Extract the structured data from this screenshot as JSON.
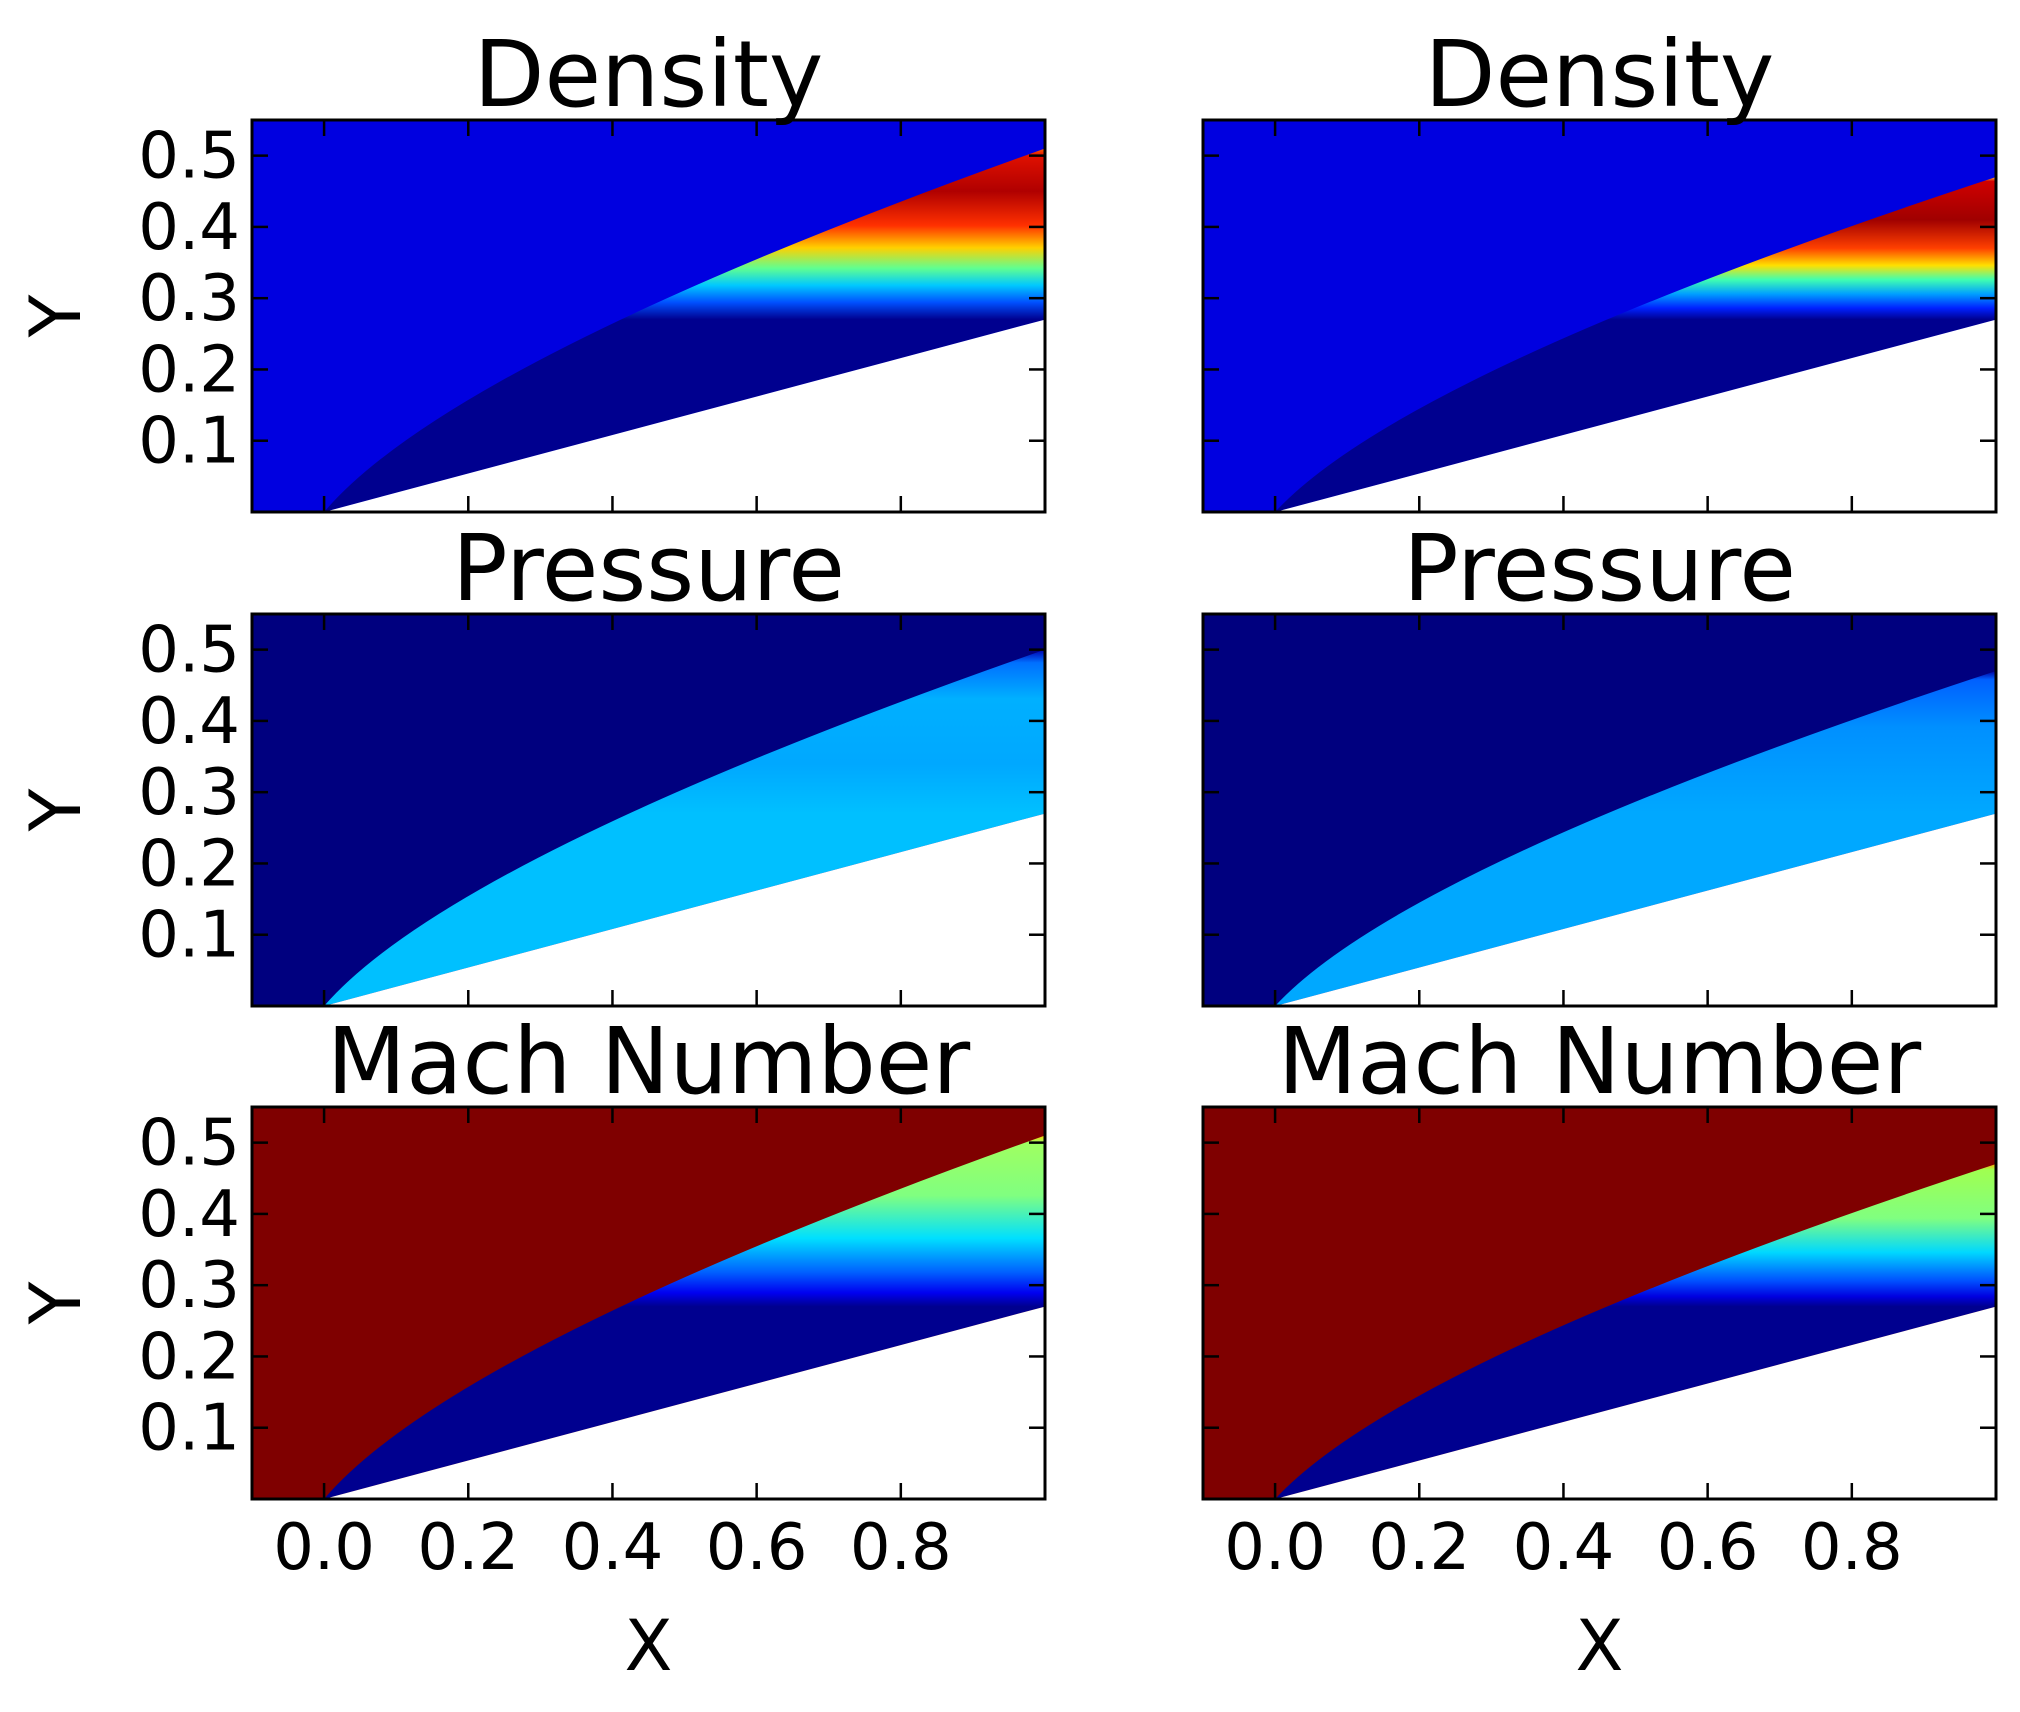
{
  "chart_data": [
    {
      "type": "heatmap",
      "title": "Density",
      "xlabel": "",
      "ylabel": "Y",
      "xlim": [
        -0.1,
        1.0
      ],
      "ylim": [
        0.0,
        0.55
      ],
      "xticks": [],
      "yticks": [
        "0.1",
        "0.2",
        "0.3",
        "0.4",
        "0.5"
      ],
      "field": "density",
      "shock_y_at_x1": 0.51,
      "wall_y_at_x1": 0.27
    },
    {
      "type": "heatmap",
      "title": "Density",
      "xlabel": "",
      "ylabel": "",
      "xlim": [
        -0.1,
        1.0
      ],
      "ylim": [
        0.0,
        0.55
      ],
      "xticks": [],
      "yticks": [],
      "field": "density",
      "shock_y_at_x1": 0.47,
      "wall_y_at_x1": 0.27
    },
    {
      "type": "heatmap",
      "title": "Pressure",
      "xlabel": "",
      "ylabel": "Y",
      "xlim": [
        -0.1,
        1.0
      ],
      "ylim": [
        0.0,
        0.55
      ],
      "xticks": [],
      "yticks": [
        "0.1",
        "0.2",
        "0.3",
        "0.4",
        "0.5"
      ],
      "field": "pressure",
      "shock_y_at_x1": 0.5,
      "wall_y_at_x1": 0.27
    },
    {
      "type": "heatmap",
      "title": "Pressure",
      "xlabel": "",
      "ylabel": "",
      "xlim": [
        -0.1,
        1.0
      ],
      "ylim": [
        0.0,
        0.55
      ],
      "xticks": [],
      "yticks": [],
      "field": "pressure",
      "shock_y_at_x1": 0.47,
      "wall_y_at_x1": 0.27
    },
    {
      "type": "heatmap",
      "title": "Mach Number",
      "xlabel": "X",
      "ylabel": "Y",
      "xlim": [
        -0.1,
        1.0
      ],
      "ylim": [
        0.0,
        0.55
      ],
      "xticks": [
        "0.0",
        "0.2",
        "0.4",
        "0.6",
        "0.8"
      ],
      "yticks": [
        "0.1",
        "0.2",
        "0.3",
        "0.4",
        "0.5"
      ],
      "field": "mach",
      "shock_y_at_x1": 0.51,
      "wall_y_at_x1": 0.27
    },
    {
      "type": "heatmap",
      "title": "Mach Number",
      "xlabel": "X",
      "ylabel": "",
      "xlim": [
        -0.1,
        1.0
      ],
      "ylim": [
        0.0,
        0.55
      ],
      "xticks": [
        "0.0",
        "0.2",
        "0.4",
        "0.6",
        "0.8"
      ],
      "yticks": [],
      "field": "mach",
      "shock_y_at_x1": 0.47,
      "wall_y_at_x1": 0.27
    }
  ],
  "colors": {
    "density_freestream": "#0000e0",
    "pressure_freestream": "#00007f",
    "mach_freestream": "#7f0000",
    "wall_region": "#ffffff",
    "jet_dark_blue": "#00008f",
    "jet_blue": "#0000ff",
    "jet_cyan": "#00c0ff",
    "jet_green": "#80ff80",
    "jet_yellow": "#ffe000",
    "jet_orange": "#ff6000",
    "jet_red": "#d00000",
    "jet_dark_red": "#800000"
  }
}
